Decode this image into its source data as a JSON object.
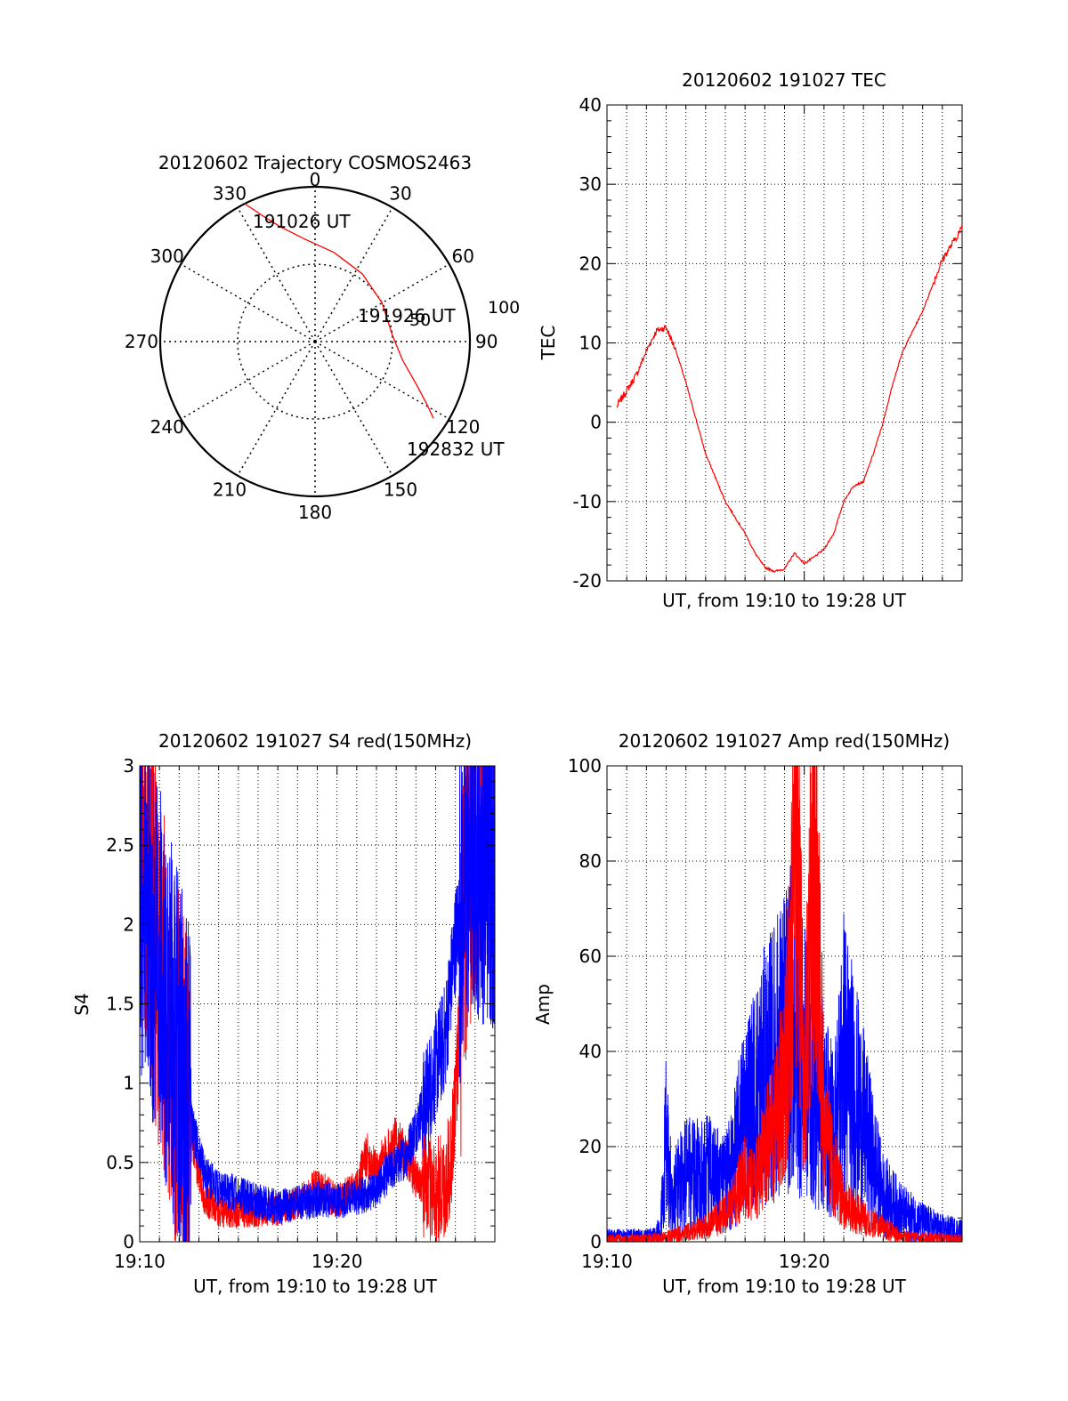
{
  "chart_data": [
    {
      "type": "polar",
      "title": "20120602 Trajectory COSMOS2463",
      "azimuth_labels": [
        "0",
        "30",
        "60",
        "90",
        "120",
        "150",
        "180",
        "210",
        "240",
        "270",
        "300",
        "330"
      ],
      "ring_labels": [
        "50",
        "100"
      ],
      "grid": true,
      "annotations": {
        "start": "191026 UT",
        "middle": "191926 UT",
        "end": "192832 UT"
      },
      "series": [
        {
          "color": "#ff0000",
          "points": [
            {
              "az": 333,
              "el": 0
            },
            {
              "az": 337,
              "el": 10
            },
            {
              "az": 343,
              "el": 20
            },
            {
              "az": 354,
              "el": 30
            },
            {
              "az": 12,
              "el": 37
            },
            {
              "az": 35,
              "el": 42
            },
            {
              "az": 60,
              "el": 45
            },
            {
              "az": 85,
              "el": 45
            },
            {
              "az": 102,
              "el": 38
            },
            {
              "az": 113,
              "el": 26
            },
            {
              "az": 119,
              "el": 16
            },
            {
              "az": 123,
              "el": 8
            }
          ]
        }
      ]
    },
    {
      "type": "line",
      "title": "20120602 191027 TEC",
      "xlabel": "UT, from 19:10 to 19:28 UT",
      "ylabel": "TEC",
      "xlim": [
        0,
        18
      ],
      "ylim": [
        -20,
        40
      ],
      "yticks": [
        "-20",
        "-10",
        "0",
        "10",
        "20",
        "30",
        "40"
      ],
      "grid": true,
      "series": [
        {
          "color": "#ff0000",
          "x": [
            0.0,
            0.5,
            1.0,
            1.5,
            2.0,
            2.5,
            3.0,
            3.5,
            4.0,
            5.0,
            6.0,
            7.0,
            7.5,
            8.0,
            8.5,
            9.0,
            9.5,
            10.0,
            10.5,
            11.0,
            11.5,
            12.0,
            12.5,
            13.0,
            13.5,
            14.0,
            14.5,
            15.0,
            16.0,
            17.0,
            17.5,
            18.0
          ],
          "y": [
            -1,
            2,
            4,
            6,
            9,
            11.5,
            12,
            9,
            5,
            -4,
            -10,
            -14,
            -16.5,
            -18.3,
            -18.8,
            -18.5,
            -16.5,
            -17.8,
            -17,
            -16,
            -14,
            -10,
            -8,
            -7.5,
            -4,
            0,
            5,
            9,
            14,
            20.5,
            22.5,
            24.5
          ]
        }
      ]
    },
    {
      "type": "line",
      "title": "20120602 191027 S4 red(150MHz)",
      "xlabel": "UT, from 19:10 to 19:28 UT",
      "ylabel": "S4",
      "xlim": [
        0,
        18
      ],
      "ylim": [
        0,
        3
      ],
      "xticks": [
        "19:10",
        "19:20"
      ],
      "yticks": [
        "0",
        "0.5",
        "1",
        "1.5",
        "2",
        "2.5",
        "3"
      ],
      "grid": true,
      "series": [
        {
          "color": "#ff0000",
          "x": [
            0,
            0.8,
            1.5,
            2.2,
            2.8,
            3.3,
            4,
            5,
            6,
            7,
            8,
            9,
            9.5,
            10,
            11,
            11.5,
            12,
            13,
            14,
            15,
            15.5,
            15.8,
            16,
            16.5,
            17,
            18
          ],
          "y": [
            2.8,
            1.9,
            1.3,
            0.95,
            0.55,
            0.28,
            0.2,
            0.19,
            0.2,
            0.21,
            0.23,
            0.35,
            0.3,
            0.25,
            0.33,
            0.55,
            0.45,
            0.65,
            0.4,
            0.32,
            0.35,
            0.55,
            0.9,
            2.1,
            2.6,
            2.8
          ]
        },
        {
          "color": "#0000ff",
          "x": [
            0,
            0.8,
            1.5,
            2.2,
            2.8,
            3.3,
            4,
            5,
            6,
            7,
            8,
            9,
            10,
            11,
            12,
            12.5,
            13,
            13.5,
            14,
            14.5,
            15,
            15.5,
            16,
            16.5,
            17,
            18
          ],
          "y": [
            2.3,
            1.8,
            1.4,
            1.0,
            0.65,
            0.42,
            0.33,
            0.3,
            0.25,
            0.22,
            0.24,
            0.27,
            0.26,
            0.28,
            0.33,
            0.42,
            0.48,
            0.55,
            0.72,
            0.9,
            1.1,
            1.3,
            1.9,
            2.3,
            2.5,
            2.4
          ]
        }
      ]
    },
    {
      "type": "line",
      "title": "20120602 191027 Amp red(150MHz)",
      "xlabel": "UT, from 19:10 to 19:28 UT",
      "ylabel": "Amp",
      "xlim": [
        0,
        18
      ],
      "ylim": [
        0,
        100
      ],
      "xticks": [
        "19:10",
        "19:20"
      ],
      "yticks": [
        "0",
        "20",
        "40",
        "60",
        "80",
        "100"
      ],
      "grid": true,
      "series": [
        {
          "color": "#ff0000",
          "x": [
            0,
            2,
            3,
            4,
            5,
            6,
            6.5,
            7,
            7.5,
            8,
            8.5,
            9,
            9.3,
            9.6,
            10,
            10.3,
            10.6,
            11,
            11.5,
            12,
            13,
            14,
            15,
            16,
            18
          ],
          "y": [
            0.5,
            0.5,
            1,
            2,
            3,
            6,
            9,
            14,
            12,
            20,
            24,
            35,
            55,
            90,
            30,
            70,
            78,
            25,
            15,
            8,
            5,
            3,
            1,
            0.8,
            0.5
          ]
        },
        {
          "color": "#0000ff",
          "x": [
            0,
            2,
            2.7,
            3,
            3.3,
            3.6,
            4,
            5,
            6,
            6.5,
            7,
            7.5,
            8,
            8.5,
            9,
            9.5,
            10,
            10.5,
            11,
            11.5,
            12,
            12.5,
            13,
            13.5,
            14,
            15,
            16,
            17,
            18
          ],
          "y": [
            1.5,
            1.5,
            2,
            22,
            8,
            12,
            14,
            15,
            12,
            18,
            27,
            30,
            35,
            38,
            42,
            46,
            37,
            33,
            28,
            22,
            40,
            32,
            25,
            17,
            10,
            6,
            4,
            2.5,
            2
          ]
        }
      ]
    }
  ]
}
